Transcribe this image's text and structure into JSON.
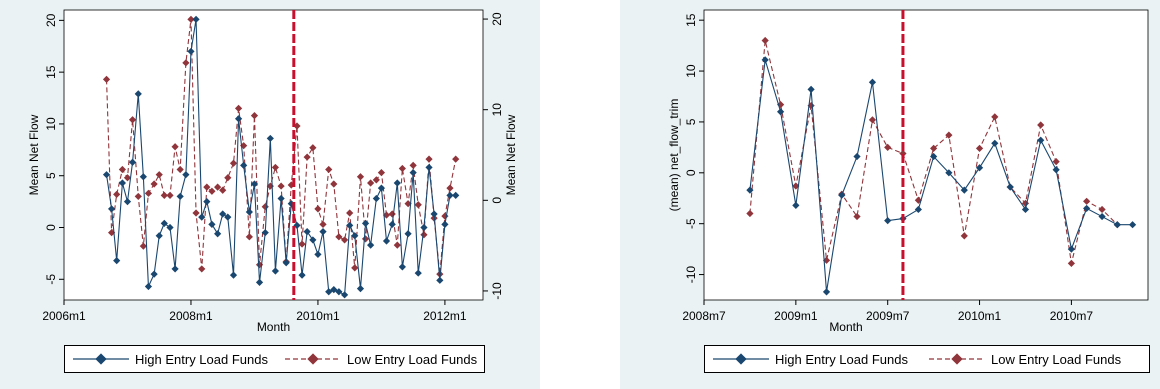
{
  "colors": {
    "panel_bg": "#eaf2f3",
    "plot_bg": "#ffffff",
    "high_series": "#1a476f",
    "low_series": "#90353b",
    "event_line": "#c8102e"
  },
  "chart_data": [
    {
      "type": "line",
      "xlabel": "Month",
      "ylabel_left": "Mean Net Flow",
      "ylabel_right": "Mean Net Flow",
      "xlim": [
        2006.0,
        2012.6
      ],
      "ylim_left": [
        -7,
        21
      ],
      "ylim_right": [
        -11,
        21
      ],
      "x_ticks": [
        {
          "v": 2006.0,
          "label": "2006m1"
        },
        {
          "v": 2008.0,
          "label": "2008m1"
        },
        {
          "v": 2010.0,
          "label": "2010m1"
        },
        {
          "v": 2012.0,
          "label": "2012m1"
        }
      ],
      "y_ticks_left": [
        -5,
        0,
        5,
        10,
        15,
        20
      ],
      "y_ticks_right": [
        -10,
        0,
        10,
        20
      ],
      "event_line_x": 2009.62,
      "grid": false,
      "legend_position": "bottom",
      "series": [
        {
          "name": "High Entry Load Funds",
          "axis": "left",
          "style": "solid",
          "x": [
            2006.67,
            2006.75,
            2006.83,
            2006.92,
            2007.0,
            2007.08,
            2007.17,
            2007.25,
            2007.33,
            2007.42,
            2007.5,
            2007.58,
            2007.67,
            2007.75,
            2007.83,
            2007.92,
            2008.0,
            2008.08,
            2008.17,
            2008.25,
            2008.33,
            2008.42,
            2008.5,
            2008.58,
            2008.67,
            2008.75,
            2008.83,
            2008.92,
            2009.0,
            2009.08,
            2009.17,
            2009.25,
            2009.33,
            2009.42,
            2009.5,
            2009.58,
            2009.67,
            2009.75,
            2009.83,
            2009.92,
            2010.0,
            2010.08,
            2010.17,
            2010.25,
            2010.33,
            2010.42,
            2010.5,
            2010.58,
            2010.67,
            2010.75,
            2010.83,
            2010.92,
            2011.0,
            2011.08,
            2011.17,
            2011.25,
            2011.33,
            2011.42,
            2011.5,
            2011.58,
            2011.67,
            2011.75,
            2011.83,
            2011.92,
            2012.0,
            2012.08,
            2012.17
          ],
          "y": [
            5.1,
            1.8,
            -3.2,
            4.3,
            2.5,
            6.3,
            12.9,
            4.9,
            -5.7,
            -4.5,
            -0.8,
            0.4,
            0.0,
            -4.0,
            3.0,
            5.1,
            17.0,
            20.1,
            1.0,
            2.5,
            0.3,
            -0.6,
            1.3,
            1.0,
            -4.6,
            10.5,
            6.0,
            1.5,
            4.2,
            -5.3,
            -0.5,
            8.6,
            -4.2,
            2.8,
            -3.4,
            2.3,
            0.2,
            -4.6,
            -0.4,
            -1.2,
            -2.6,
            -0.4,
            -6.2,
            -6.0,
            -6.2,
            -6.5,
            0.2,
            -0.8,
            -5.9,
            0.4,
            -1.7,
            2.8,
            3.8,
            -1.3,
            0.3,
            4.3,
            -3.8,
            -0.6,
            5.3,
            -4.4,
            0.0,
            5.8,
            1.3,
            -5.1,
            0.3,
            3.1,
            3.1
          ]
        },
        {
          "name": "Low Entry Load Funds",
          "axis": "left",
          "style": "dashed",
          "x": [
            2006.67,
            2006.75,
            2006.83,
            2006.92,
            2007.0,
            2007.08,
            2007.17,
            2007.25,
            2007.33,
            2007.42,
            2007.5,
            2007.58,
            2007.67,
            2007.75,
            2007.83,
            2007.92,
            2008.0,
            2008.08,
            2008.17,
            2008.25,
            2008.33,
            2008.42,
            2008.5,
            2008.58,
            2008.67,
            2008.75,
            2008.83,
            2008.92,
            2009.0,
            2009.08,
            2009.17,
            2009.25,
            2009.33,
            2009.42,
            2009.5,
            2009.58,
            2009.67,
            2009.75,
            2009.83,
            2009.92,
            2010.0,
            2010.08,
            2010.17,
            2010.25,
            2010.33,
            2010.42,
            2010.5,
            2010.58,
            2010.67,
            2010.75,
            2010.83,
            2010.92,
            2011.0,
            2011.08,
            2011.17,
            2011.25,
            2011.33,
            2011.42,
            2011.5,
            2011.58,
            2011.67,
            2011.75,
            2011.83,
            2011.92,
            2012.0,
            2012.08,
            2012.17
          ],
          "y": [
            14.3,
            -0.5,
            3.2,
            5.6,
            4.8,
            10.4,
            3.0,
            -1.8,
            3.3,
            4.2,
            5.1,
            3.1,
            3.1,
            7.8,
            5.6,
            15.9,
            20.1,
            1.4,
            -4.0,
            3.9,
            3.5,
            3.9,
            3.6,
            4.8,
            6.2,
            11.5,
            7.9,
            -0.9,
            10.8,
            -3.6,
            2.0,
            4.0,
            5.8,
            4.0,
            -3.3,
            4.1,
            9.8,
            -1.6,
            6.8,
            7.7,
            1.8,
            0.3,
            5.6,
            4.2,
            -0.9,
            -1.2,
            1.4,
            -3.9,
            4.9,
            -1.1,
            4.3,
            4.6,
            5.3,
            1.2,
            1.3,
            -1.7,
            5.7,
            2.3,
            6.0,
            2.2,
            -0.7,
            6.6,
            0.9,
            -4.5,
            1.1,
            3.8,
            6.6
          ]
        }
      ]
    },
    {
      "type": "line",
      "xlabel": "Month",
      "ylabel": "(mean) net_flow_trim",
      "xlim": [
        2008.5,
        2010.917
      ],
      "ylim": [
        -12.5,
        16
      ],
      "x_ticks": [
        {
          "v": 2008.5,
          "label": "2008m7"
        },
        {
          "v": 2009.0,
          "label": "2009m1"
        },
        {
          "v": 2009.5,
          "label": "2009m7"
        },
        {
          "v": 2010.0,
          "label": "2010m1"
        },
        {
          "v": 2010.5,
          "label": "2010m7"
        }
      ],
      "y_ticks": [
        -10,
        -5,
        0,
        5,
        10,
        15
      ],
      "event_line_x": 2009.583,
      "grid": false,
      "legend_position": "bottom",
      "series": [
        {
          "name": "High Entry Load Funds",
          "style": "solid",
          "x": [
            2008.75,
            2008.833,
            2008.917,
            2009.0,
            2009.083,
            2009.167,
            2009.25,
            2009.333,
            2009.417,
            2009.5,
            2009.583,
            2009.667,
            2009.75,
            2009.833,
            2009.917,
            2010.0,
            2010.083,
            2010.167,
            2010.25,
            2010.333,
            2010.417,
            2010.5,
            2010.583,
            2010.667,
            2010.75,
            2010.833
          ],
          "y": [
            -1.7,
            11.1,
            6.0,
            -3.2,
            8.2,
            -11.7,
            -2.2,
            1.6,
            8.9,
            -4.7,
            -4.5,
            -3.6,
            1.6,
            0.0,
            -1.7,
            0.5,
            2.9,
            -1.4,
            -3.6,
            3.2,
            0.3,
            -7.5,
            -3.5,
            -4.3,
            -5.1,
            -5.1
          ]
        },
        {
          "name": "Low Entry Load Funds",
          "style": "dashed",
          "x": [
            2008.75,
            2008.833,
            2008.917,
            2009.0,
            2009.083,
            2009.167,
            2009.25,
            2009.333,
            2009.417,
            2009.5,
            2009.583,
            2009.667,
            2009.75,
            2009.833,
            2009.917,
            2010.0,
            2010.083,
            2010.167,
            2010.25,
            2010.333,
            2010.417,
            2010.5,
            2010.583,
            2010.667,
            2010.75
          ],
          "y": [
            -4.0,
            13.0,
            6.7,
            -1.3,
            6.6,
            -8.6,
            -2.1,
            -4.3,
            5.2,
            2.5,
            1.9,
            -2.7,
            2.4,
            3.7,
            -6.2,
            2.4,
            5.5,
            -1.4,
            -3.0,
            4.7,
            1.1,
            -8.9,
            -2.8,
            -3.6,
            -5.1
          ]
        }
      ]
    }
  ]
}
